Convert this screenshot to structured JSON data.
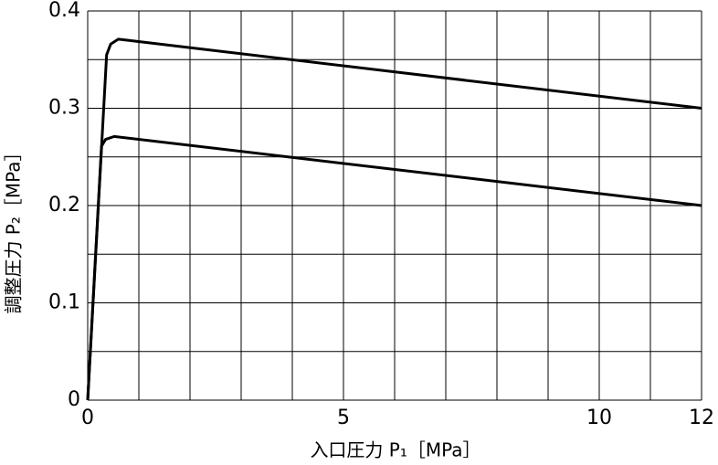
{
  "chart_data": {
    "type": "line",
    "xlabel": "入口圧力 P₁［MPa］",
    "ylabel": "調整圧力 P₂［MPa］",
    "xlim": [
      0,
      12
    ],
    "xticks": [
      0,
      5,
      10,
      12
    ],
    "ylim": [
      0,
      0.4
    ],
    "yticks": [
      0,
      0.1,
      0.2,
      0.3,
      0.4
    ],
    "grid": true,
    "xgrid": [
      0,
      1,
      2,
      3,
      4,
      5,
      6,
      7,
      8,
      9,
      10,
      11,
      12
    ],
    "ygrid": [
      0,
      0.05,
      0.1,
      0.15,
      0.2,
      0.25,
      0.3,
      0.35,
      0.4
    ],
    "series": [
      {
        "color": "#000000",
        "x": [
          0,
          0.37,
          0.45,
          0.6,
          12
        ],
        "values": [
          0,
          0.355,
          0.366,
          0.371,
          0.3
        ]
      },
      {
        "color": "#000000",
        "x": [
          0,
          0.27,
          0.35,
          0.52,
          12
        ],
        "values": [
          0,
          0.261,
          0.268,
          0.271,
          0.2
        ]
      }
    ]
  }
}
